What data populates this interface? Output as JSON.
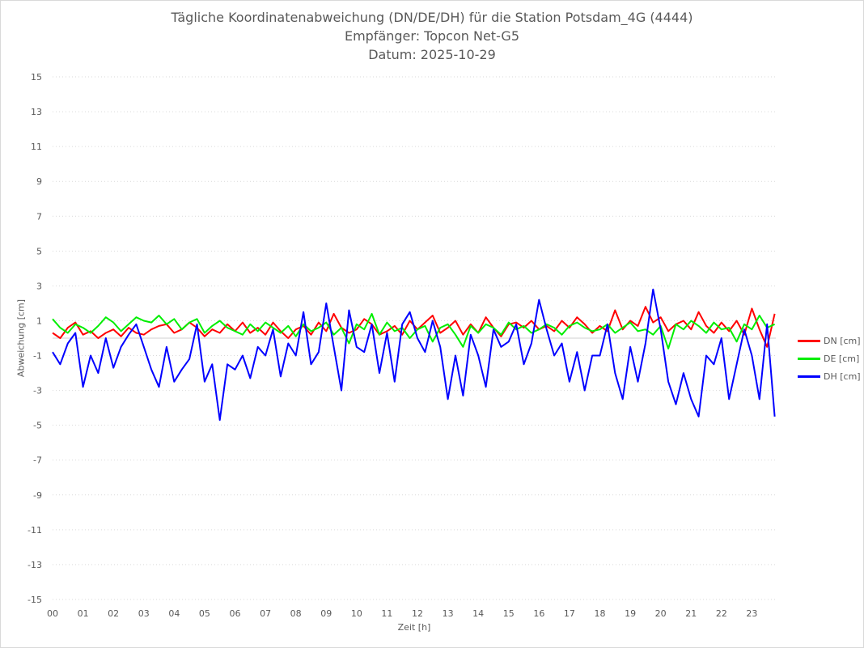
{
  "chart_data": {
    "type": "line",
    "title": [
      "Tägliche Koordinatenabweichung (DN/DE/DH) für die Station Potsdam_4G (4444)",
      "Empfänger: Topcon Net-G5",
      "Datum: 2025-10-29"
    ],
    "xlabel": "Zeit [h]",
    "ylabel": "Abweichung [cm]",
    "xlim": [
      0,
      24
    ],
    "ylim": [
      -15,
      15
    ],
    "x_ticks": [
      "00",
      "01",
      "02",
      "03",
      "04",
      "05",
      "06",
      "07",
      "08",
      "09",
      "10",
      "11",
      "12",
      "13",
      "14",
      "15",
      "16",
      "17",
      "18",
      "19",
      "20",
      "21",
      "22",
      "23"
    ],
    "y_ticks": [
      15,
      13,
      11,
      9,
      7,
      5,
      3,
      1,
      -1,
      -3,
      -5,
      -7,
      -9,
      -11,
      -13,
      -15
    ],
    "grid": "horizontal dotted",
    "legend": "right",
    "x_step_hours": 0.25,
    "series": [
      {
        "name": "DN [cm]",
        "color": "#ff0000",
        "values": [
          0.3,
          0.0,
          0.6,
          0.9,
          0.2,
          0.4,
          0.0,
          0.3,
          0.5,
          0.1,
          0.6,
          0.3,
          0.2,
          0.5,
          0.7,
          0.8,
          0.3,
          0.5,
          0.9,
          0.6,
          0.1,
          0.5,
          0.3,
          0.8,
          0.4,
          0.9,
          0.3,
          0.6,
          0.2,
          0.9,
          0.4,
          0.0,
          0.5,
          0.7,
          0.2,
          0.9,
          0.4,
          1.4,
          0.6,
          0.3,
          0.5,
          1.1,
          0.8,
          0.2,
          0.4,
          0.7,
          0.2,
          1.0,
          0.5,
          0.9,
          1.3,
          0.3,
          0.6,
          1.0,
          0.2,
          0.8,
          0.3,
          1.2,
          0.6,
          0.1,
          0.8,
          0.9,
          0.6,
          1.0,
          0.5,
          0.7,
          0.4,
          1.0,
          0.6,
          1.2,
          0.8,
          0.3,
          0.7,
          0.4,
          1.6,
          0.5,
          1.0,
          0.7,
          1.8,
          0.9,
          1.2,
          0.4,
          0.8,
          1.0,
          0.5,
          1.5,
          0.7,
          0.3,
          0.9,
          0.4,
          1.0,
          0.2,
          1.7,
          0.5,
          -0.5,
          1.4
        ]
      },
      {
        "name": "DE [cm]",
        "color": "#00ee00",
        "values": [
          1.1,
          0.6,
          0.3,
          0.8,
          0.6,
          0.3,
          0.7,
          1.2,
          0.9,
          0.4,
          0.8,
          1.2,
          1.0,
          0.9,
          1.3,
          0.8,
          1.1,
          0.5,
          0.9,
          1.1,
          0.3,
          0.7,
          1.0,
          0.6,
          0.4,
          0.2,
          0.8,
          0.4,
          0.9,
          0.6,
          0.3,
          0.7,
          0.1,
          0.8,
          0.4,
          0.6,
          0.9,
          0.2,
          0.6,
          -0.3,
          0.8,
          0.5,
          1.4,
          0.2,
          0.9,
          0.4,
          0.6,
          0.0,
          0.5,
          0.7,
          -0.2,
          0.6,
          0.8,
          0.2,
          -0.5,
          0.7,
          0.3,
          0.8,
          0.6,
          0.2,
          0.9,
          0.5,
          0.7,
          0.3,
          0.5,
          0.8,
          0.6,
          0.2,
          0.7,
          0.9,
          0.6,
          0.4,
          0.5,
          0.8,
          0.3,
          0.6,
          0.9,
          0.4,
          0.5,
          0.2,
          0.7,
          -0.6,
          0.8,
          0.5,
          1.0,
          0.7,
          0.3,
          0.9,
          0.5,
          0.6,
          -0.2,
          0.8,
          0.5,
          1.3,
          0.6,
          0.8
        ]
      },
      {
        "name": "DH [cm]",
        "color": "#0000ff",
        "values": [
          -0.8,
          -1.5,
          -0.3,
          0.3,
          -2.8,
          -1.0,
          -2.0,
          0.0,
          -1.7,
          -0.5,
          0.2,
          0.8,
          -0.5,
          -1.8,
          -2.8,
          -0.5,
          -2.5,
          -1.8,
          -1.2,
          0.8,
          -2.5,
          -1.5,
          -4.7,
          -1.5,
          -1.8,
          -1.0,
          -2.3,
          -0.5,
          -1.0,
          0.5,
          -2.2,
          -0.3,
          -1.0,
          1.5,
          -1.5,
          -0.8,
          2.0,
          -0.5,
          -3.0,
          1.6,
          -0.5,
          -0.8,
          0.8,
          -2.0,
          0.3,
          -2.5,
          0.8,
          1.5,
          0.0,
          -0.8,
          1.0,
          -0.5,
          -3.5,
          -1.0,
          -3.3,
          0.2,
          -1.0,
          -2.8,
          0.5,
          -0.5,
          -0.2,
          0.8,
          -1.5,
          -0.3,
          2.2,
          0.5,
          -1.0,
          -0.3,
          -2.5,
          -0.8,
          -3.0,
          -1.0,
          -1.0,
          0.8,
          -2.0,
          -3.5,
          -0.5,
          -2.5,
          -0.3,
          2.8,
          0.5,
          -2.5,
          -3.8,
          -2.0,
          -3.5,
          -4.5,
          -1.0,
          -1.5,
          0.0,
          -3.5,
          -1.5,
          0.5,
          -1.0,
          -3.5,
          0.8,
          -4.5
        ]
      }
    ]
  }
}
